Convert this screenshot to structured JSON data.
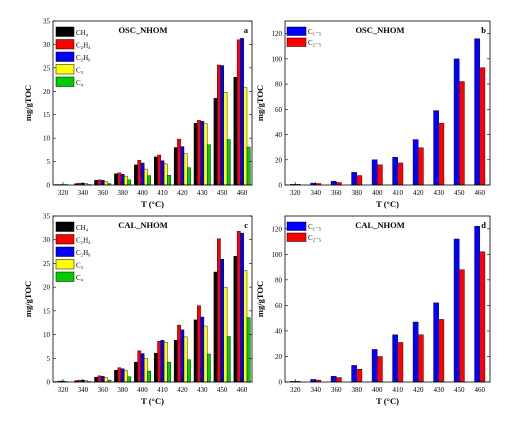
{
  "chart_data": [
    {
      "type": "bar",
      "title": "OSC_NHOM",
      "panel_letter": "a",
      "xlabel": "T (°C)",
      "ylabel": "mg/gTOC",
      "ylim": [
        0,
        35
      ],
      "yticks": [
        0,
        5,
        10,
        15,
        20,
        25,
        30,
        35
      ],
      "categories": [
        "320",
        "340",
        "360",
        "380",
        "400",
        "410",
        "420",
        "430",
        "450",
        "460"
      ],
      "legend_position": "top-left",
      "series": [
        {
          "name": "CH₄",
          "color": "#000000",
          "values": [
            0.1,
            0.3,
            1.0,
            2.4,
            4.3,
            6.0,
            8.0,
            13.2,
            18.5,
            23.0
          ]
        },
        {
          "name": "C₂H₄",
          "color": "#ff0000",
          "values": [
            0.1,
            0.4,
            1.1,
            2.6,
            5.3,
            6.4,
            9.8,
            13.8,
            25.6,
            31.0
          ]
        },
        {
          "name": "C₂H₆",
          "color": "#0000ff",
          "values": [
            0.1,
            0.4,
            1.0,
            2.3,
            4.7,
            5.2,
            8.2,
            13.6,
            25.5,
            31.3
          ]
        },
        {
          "name": "C₃",
          "color": "#ffff00",
          "values": [
            0.1,
            0.3,
            0.7,
            1.9,
            3.4,
            4.5,
            6.7,
            13.1,
            19.8,
            20.8
          ]
        },
        {
          "name": "C₄",
          "color": "#00cc00",
          "values": [
            0.0,
            0.1,
            0.3,
            1.1,
            2.0,
            2.1,
            3.7,
            8.6,
            9.7,
            8.1
          ]
        }
      ]
    },
    {
      "type": "bar",
      "title": "OSC_NHOM",
      "panel_letter": "b",
      "xlabel": "T (°C)",
      "ylabel": "mg/gTOC",
      "ylim": [
        0,
        130
      ],
      "yticks": [
        0,
        20,
        40,
        60,
        80,
        100,
        120
      ],
      "categories": [
        "320",
        "340",
        "360",
        "380",
        "400",
        "410",
        "420",
        "430",
        "450",
        "460"
      ],
      "legend_position": "top-left",
      "series": [
        {
          "name": "C₁₋₅",
          "color": "#0000ff",
          "values": [
            0.5,
            1.5,
            3.0,
            10.0,
            20.0,
            22.0,
            36.0,
            59.0,
            100.0,
            116.0
          ]
        },
        {
          "name": "C₂₋₅",
          "color": "#ff0000",
          "values": [
            0.5,
            1.2,
            2.0,
            7.5,
            16.0,
            17.5,
            29.5,
            49.0,
            82.0,
            93.0
          ]
        }
      ]
    },
    {
      "type": "bar",
      "title": "CAL_NHOM",
      "panel_letter": "c",
      "xlabel": "T (°C)",
      "ylabel": "mg/gTOC",
      "ylim": [
        0,
        35
      ],
      "yticks": [
        0,
        5,
        10,
        15,
        20,
        25,
        30,
        35
      ],
      "categories": [
        "320",
        "340",
        "360",
        "380",
        "400",
        "410",
        "420",
        "430",
        "450",
        "460"
      ],
      "legend_position": "top-left",
      "series": [
        {
          "name": "CH₄",
          "color": "#000000",
          "values": [
            0.1,
            0.3,
            1.0,
            2.5,
            4.2,
            6.1,
            8.8,
            13.1,
            23.2,
            26.5
          ]
        },
        {
          "name": "C₂H₄",
          "color": "#ff0000",
          "values": [
            0.2,
            0.4,
            1.3,
            3.0,
            6.6,
            8.6,
            12.0,
            16.1,
            30.2,
            31.8
          ]
        },
        {
          "name": "C₂H₆",
          "color": "#0000ff",
          "values": [
            0.2,
            0.4,
            1.2,
            2.8,
            6.0,
            8.8,
            11.0,
            13.7,
            25.9,
            31.4
          ]
        },
        {
          "name": "C₃",
          "color": "#ffff00",
          "values": [
            0.1,
            0.3,
            0.9,
            2.4,
            5.0,
            8.4,
            9.5,
            11.8,
            20.0,
            23.5
          ]
        },
        {
          "name": "C₄",
          "color": "#00cc00",
          "values": [
            0.0,
            0.1,
            0.4,
            1.1,
            2.3,
            4.2,
            4.7,
            5.9,
            9.6,
            13.6
          ]
        }
      ]
    },
    {
      "type": "bar",
      "title": "CAL_NHOM",
      "panel_letter": "d",
      "xlabel": "T (°C)",
      "ylabel": "mg/gTOC",
      "ylim": [
        0,
        130
      ],
      "yticks": [
        0,
        20,
        40,
        60,
        80,
        100,
        120
      ],
      "categories": [
        "320",
        "340",
        "360",
        "380",
        "400",
        "410",
        "420",
        "430",
        "450",
        "460"
      ],
      "legend_position": "top-left",
      "series": [
        {
          "name": "C₁₋₅",
          "color": "#0000ff",
          "values": [
            0.5,
            2.0,
            4.5,
            13.0,
            25.5,
            37.0,
            47.0,
            62.0,
            112.0,
            122.0
          ]
        },
        {
          "name": "C₂₋₅",
          "color": "#ff0000",
          "values": [
            0.5,
            1.5,
            3.5,
            10.0,
            20.0,
            31.0,
            37.0,
            49.0,
            88.0,
            102.0
          ]
        }
      ]
    }
  ]
}
